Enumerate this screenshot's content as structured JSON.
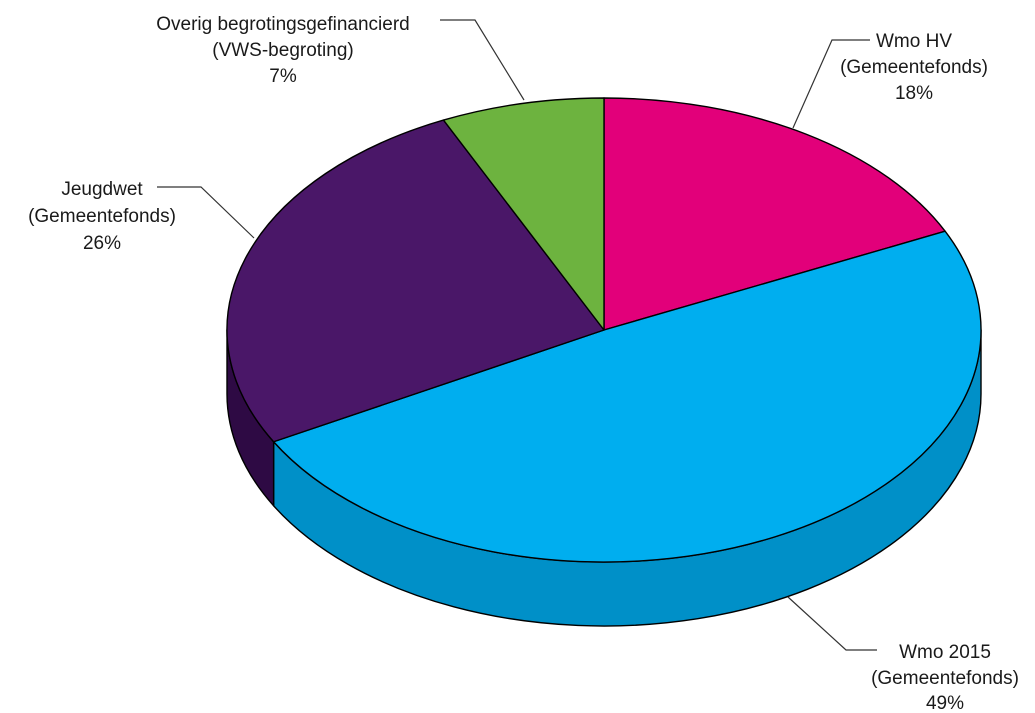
{
  "chart_data": {
    "type": "pie",
    "style": "3d-tilted",
    "slices": [
      {
        "name": "Wmo HV",
        "sublabel": "(Gemeentefonds)",
        "value": 18,
        "value_label": "18%",
        "color": "#e2007a",
        "side_color": "#a8005b"
      },
      {
        "name": "Wmo 2015",
        "sublabel": "(Gemeentefonds)",
        "value": 49,
        "value_label": "49%",
        "color": "#00aeef",
        "side_color": "#0090c8"
      },
      {
        "name": "Jeugdwet",
        "sublabel": "(Gemeentefonds)",
        "value": 26,
        "value_label": "26%",
        "color": "#4a1768",
        "side_color": "#2e0a44"
      },
      {
        "name": "Overig begrotingsgefinancierd",
        "sublabel": "(VWS-begroting)",
        "value": 7,
        "value_label": "7%",
        "color": "#6db33f",
        "side_color": "#4e8a2a"
      }
    ]
  }
}
